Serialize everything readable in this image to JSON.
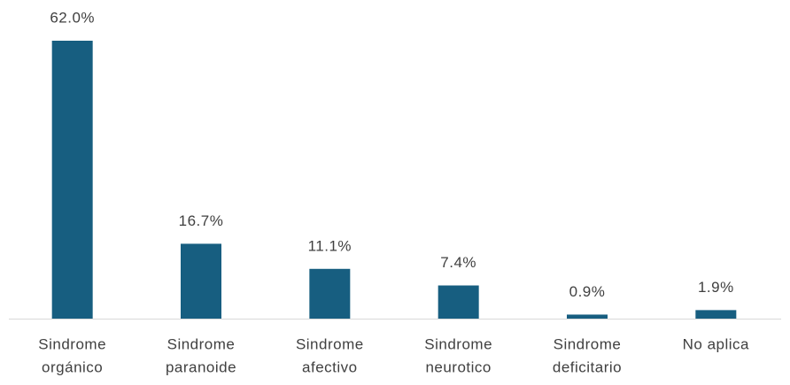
{
  "chart_data": {
    "type": "bar",
    "categories": [
      [
        "Sindrome",
        "orgánico"
      ],
      [
        "Sindrome",
        "paranoide"
      ],
      [
        "Sindrome",
        "afectivo"
      ],
      [
        "Sindrome",
        "neurotico"
      ],
      [
        "Sindrome",
        "deficitario"
      ],
      [
        "No aplica"
      ]
    ],
    "values": [
      62.0,
      16.7,
      11.1,
      7.4,
      0.9,
      1.9
    ],
    "value_labels": [
      "62.0%",
      "16.7%",
      "11.1%",
      "7.4%",
      "0.9%",
      "1.9%"
    ],
    "color": "#175e80"
  }
}
